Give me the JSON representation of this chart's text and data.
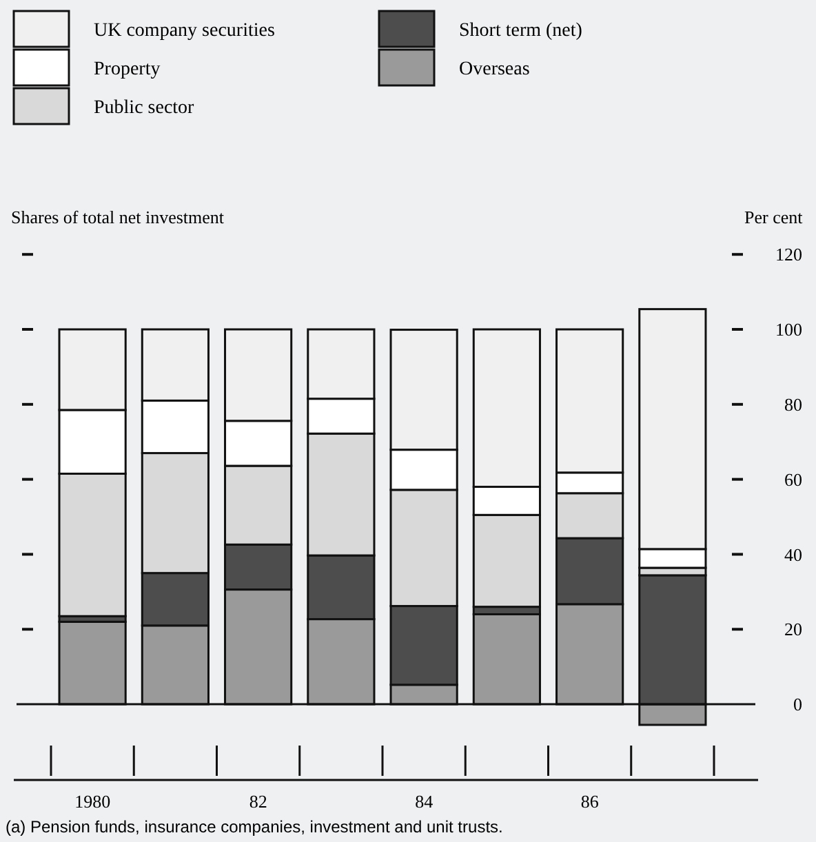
{
  "chart_data": {
    "type": "bar",
    "stacked": true,
    "subtitle": "Shares of total net investment",
    "ylabel": "Per cent",
    "categories": [
      "1980",
      null,
      "82",
      null,
      "84",
      null,
      "86",
      null
    ],
    "series": [
      {
        "name": "Overseas",
        "color": "#9a9a9a",
        "values": [
          22,
          21,
          30.6,
          22.7,
          5.2,
          24,
          26.7,
          -5.5
        ]
      },
      {
        "name": "Short term (net)",
        "color": "#4d4d4d",
        "values": [
          1.5,
          14,
          12,
          17,
          21,
          2,
          17.6,
          34.4
        ]
      },
      {
        "name": "Public sector",
        "color": "#d9d9d9",
        "values": [
          38,
          32,
          21,
          32.5,
          31,
          24.5,
          12,
          2
        ]
      },
      {
        "name": "Property",
        "color": "#ffffff",
        "values": [
          17,
          14,
          12,
          9.3,
          10.7,
          7.5,
          5.5,
          5
        ]
      },
      {
        "name": "UK company securities",
        "color": "#f0f0f0",
        "values": [
          21.5,
          19,
          24.4,
          18.5,
          32,
          42,
          38.2,
          64
        ]
      }
    ],
    "ylim": [
      -5.5,
      120
    ],
    "yticks": [
      0,
      20,
      40,
      60,
      80,
      100,
      120
    ],
    "legend": "top",
    "annotations": [
      "(a) Pension funds, insurance companies, investment and unit trusts."
    ]
  }
}
